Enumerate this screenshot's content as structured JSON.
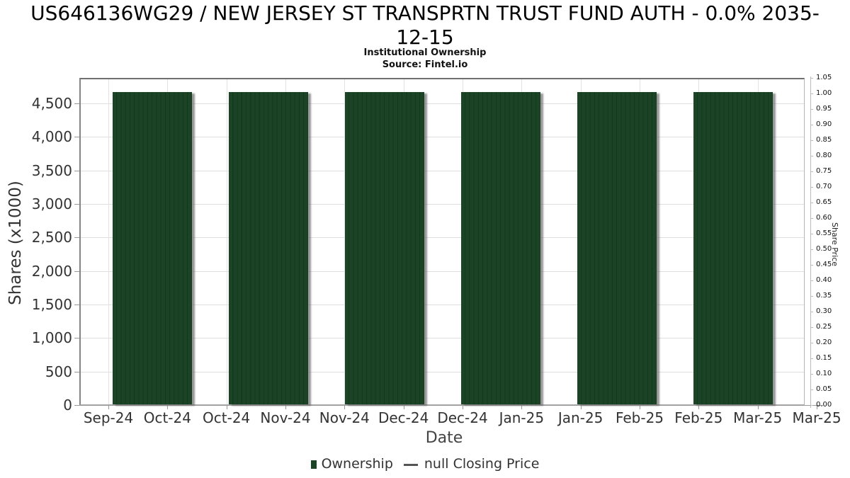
{
  "colors": {
    "bar": "#1a4425",
    "bar_separator": "#14381c",
    "bar_shadow": "#8f8f8f",
    "grid": "#dedede",
    "axis": "#999999",
    "tick_text": "#333333",
    "title_text": "#000000"
  },
  "chart_data": {
    "type": "bar",
    "title": "US646136WG29 / NEW JERSEY ST TRANSPRTN TRUST FUND AUTH - 0.0% 2035-12-15",
    "subtitle": "Institutional Ownership",
    "source": "Source: Fintel.io",
    "xlabel": "Date",
    "ylabel_left": "Shares (x1000)",
    "ylabel_right": "Share Price",
    "categories": [
      "Oct-24",
      "Nov-24",
      "Dec-24",
      "Jan-25",
      "Feb-25",
      "Mar-25"
    ],
    "series": [
      {
        "name": "Ownership",
        "unit": "shares x1000",
        "values": [
          4670,
          4670,
          4670,
          4670,
          4670,
          4670
        ]
      },
      {
        "name": "null Closing Price",
        "values": null
      }
    ],
    "x_tick_labels": [
      "Sep-24",
      "Oct-24",
      "Oct-24",
      "Nov-24",
      "Nov-24",
      "Dec-24",
      "Dec-24",
      "Jan-25",
      "Jan-25",
      "Feb-25",
      "Feb-25",
      "Mar-25",
      "Mar-25"
    ],
    "left_axis": {
      "tick_labels": [
        "0",
        "500",
        "1,000",
        "1,500",
        "2,000",
        "2,500",
        "3,000",
        "3,500",
        "4,000",
        "4,500"
      ],
      "tick_values": [
        0,
        500,
        1000,
        1500,
        2000,
        2500,
        3000,
        3500,
        4000,
        4500
      ],
      "axis_top_value": 4880
    },
    "right_axis": {
      "tick_labels": [
        "0.00",
        "0.05",
        "0.10",
        "0.15",
        "0.20",
        "0.25",
        "0.30",
        "0.35",
        "0.40",
        "0.45",
        "0.50",
        "0.55",
        "0.60",
        "0.65",
        "0.70",
        "0.75",
        "0.80",
        "0.85",
        "0.90",
        "0.95",
        "1.00",
        "1.05"
      ],
      "min": 0.0,
      "max": 1.05,
      "step": 0.05
    },
    "ylim_left": [
      0,
      4880
    ],
    "ylim_right": [
      0,
      1.05
    ],
    "grid": true,
    "legend_position": "bottom",
    "legend": {
      "ownership": "Ownership",
      "closing_price": "null Closing Price"
    }
  }
}
